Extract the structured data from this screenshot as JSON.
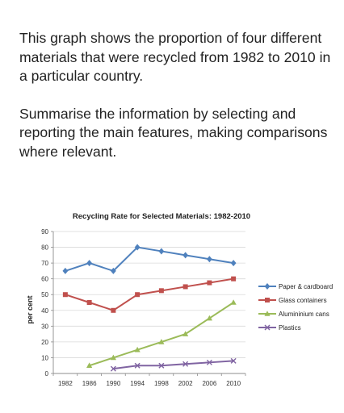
{
  "task": {
    "paragraph1": "This graph shows the proportion of four different materials that were recycled from 1982 to 2010 in a particular country.",
    "paragraph2": "Summarise the information by selecting and reporting the main features, making comparisons where relevant."
  },
  "chart_data": {
    "type": "line",
    "title": "Recycling Rate for Selected Materials: 1982-2010",
    "xlabel": "",
    "ylabel": "per cent",
    "x": [
      "1982",
      "1986",
      "1990",
      "1994",
      "1998",
      "2002",
      "2006",
      "2010"
    ],
    "ylim": [
      0,
      90
    ],
    "yticks": [
      0,
      10,
      20,
      30,
      40,
      50,
      60,
      70,
      80,
      90
    ],
    "grid": true,
    "legend": "right",
    "series": [
      {
        "name": "Paper & cardboard",
        "color": "#4f81bd",
        "marker": "diamond",
        "values": [
          65,
          70,
          65,
          80,
          77.5,
          75,
          72.5,
          70
        ]
      },
      {
        "name": "Glass containers",
        "color": "#c0504d",
        "marker": "square",
        "values": [
          50,
          45,
          40,
          50,
          52.5,
          55,
          57.5,
          60
        ]
      },
      {
        "name": "Alumininium cans",
        "color": "#9bbb59",
        "marker": "triangle",
        "values": [
          null,
          5,
          10,
          15,
          20,
          25,
          35,
          45
        ]
      },
      {
        "name": "Plastics",
        "color": "#8064a2",
        "marker": "x",
        "values": [
          null,
          null,
          3,
          5,
          5,
          6,
          7,
          8
        ]
      }
    ]
  }
}
